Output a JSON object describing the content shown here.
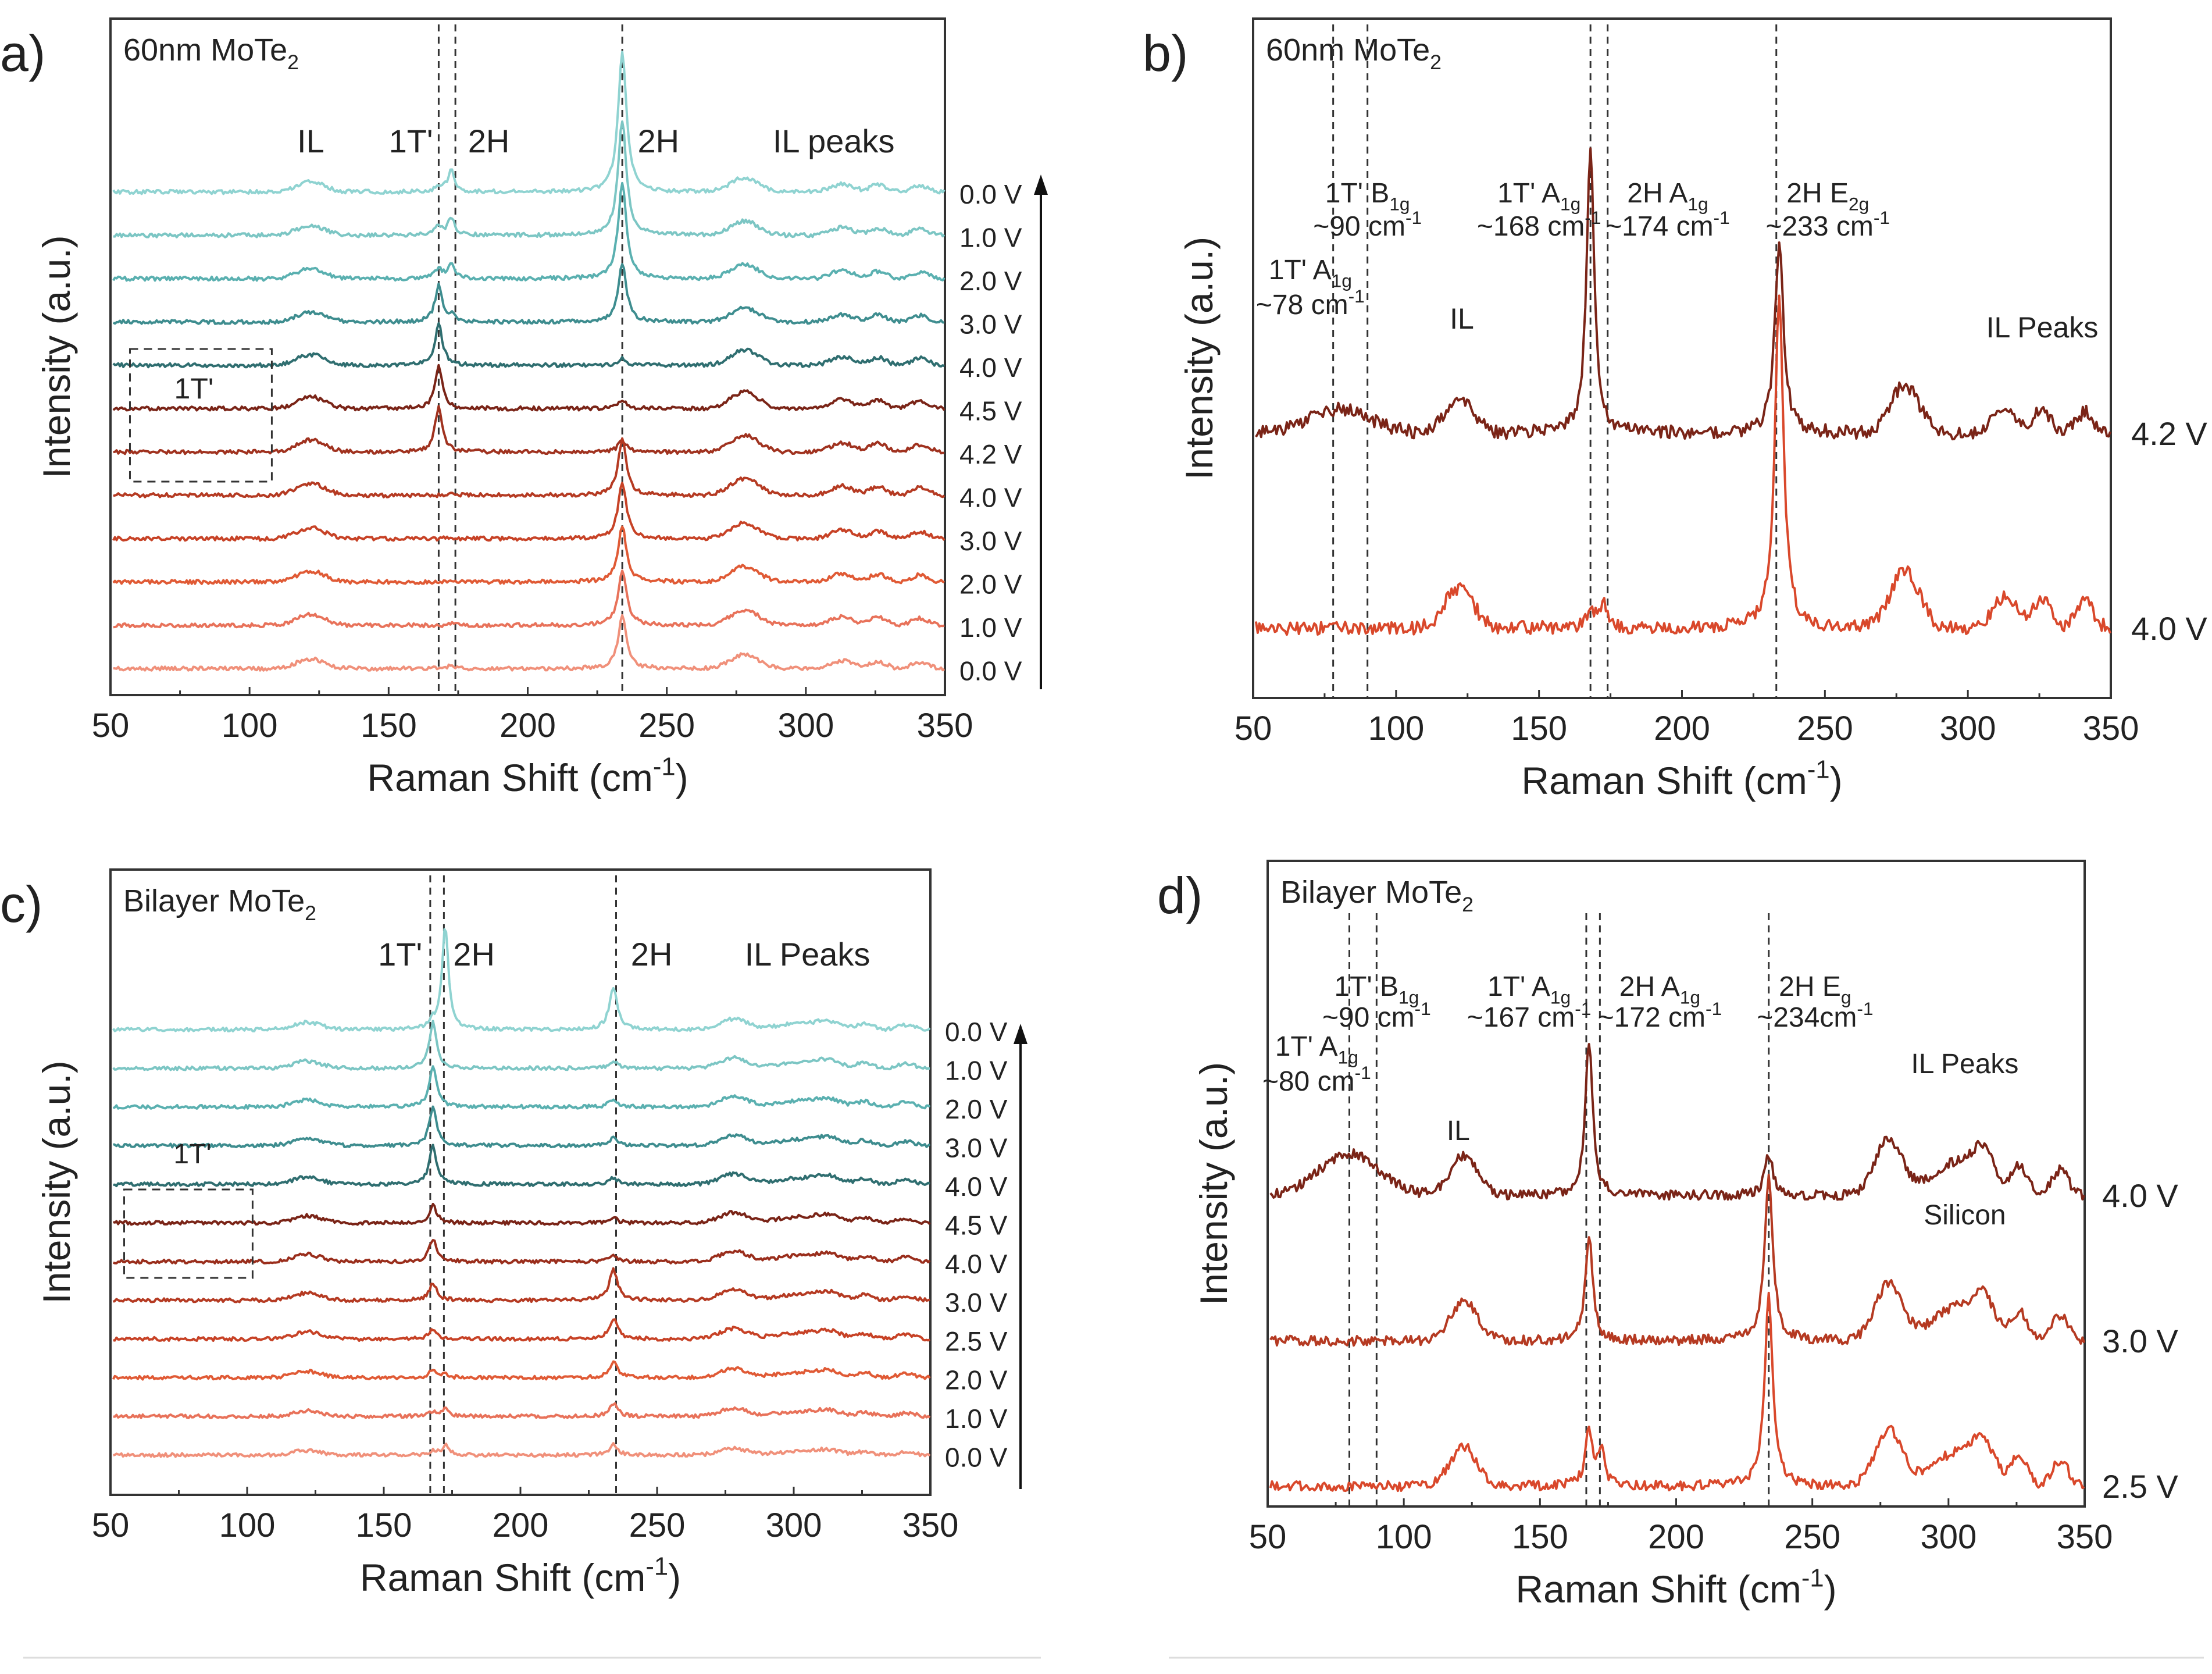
{
  "figure": {
    "colors": {
      "axis": "#333333",
      "dash": "#333333",
      "teal_light": "#8fd3d1",
      "teal_dark": "#2f6e70",
      "maroon": "#7a2417",
      "red": "#d9482b",
      "salmon": "#f0907a"
    }
  },
  "chart_data": [
    {
      "id": "a",
      "type": "line",
      "panel_label": "a)",
      "sample_label": "60nm MoTe",
      "sample_sub": "2",
      "xlabel": "Raman Shift (cm",
      "xlabel_sup": "-1",
      "xlabel_tail": ")",
      "ylabel": "Intensity (a.u.)",
      "xlim": [
        50,
        350
      ],
      "xticks": [
        50,
        100,
        150,
        200,
        250,
        300,
        350
      ],
      "dashed_lines": [
        168,
        174,
        234
      ],
      "peak_labels": [
        {
          "text": "IL",
          "x": 122
        },
        {
          "text": "1T'",
          "x": 158
        },
        {
          "text": "2H",
          "x": 186
        },
        {
          "text": "2H",
          "x": 247
        },
        {
          "text": "IL peaks",
          "x": 310
        }
      ],
      "box_label": "1T'",
      "arrow": true,
      "series": [
        {
          "name": "0.0 V",
          "color": "#8fd3d1",
          "p168": 0.4,
          "p174": 1.6,
          "p234": 10.0,
          "il": 1.0,
          "silicon": 0.0
        },
        {
          "name": "1.0 V",
          "color": "#7cc6c4",
          "p168": 0.6,
          "p174": 1.3,
          "p234": 8.2,
          "il": 1.0,
          "silicon": 0.0
        },
        {
          "name": "2.0 V",
          "color": "#5ab0b0",
          "p168": 0.7,
          "p174": 1.0,
          "p234": 6.8,
          "il": 1.0,
          "silicon": 0.0
        },
        {
          "name": "3.0 V",
          "color": "#3e8d8f",
          "p168": 2.6,
          "p174": 0.4,
          "p234": 4.2,
          "il": 1.0,
          "silicon": 0.0
        },
        {
          "name": "4.0 V",
          "color": "#2f6e70",
          "p168": 3.0,
          "p174": 0.0,
          "p234": 0.5,
          "il": 1.1,
          "silicon": 0.0
        },
        {
          "name": "4.5 V",
          "color": "#7a2417",
          "p168": 3.0,
          "p174": 0.0,
          "p234": 0.6,
          "il": 1.2,
          "silicon": 0.0
        },
        {
          "name": "4.2 V",
          "color": "#a0321f",
          "p168": 3.2,
          "p174": 0.0,
          "p234": 0.8,
          "il": 1.2,
          "silicon": 0.0
        },
        {
          "name": "4.0 V",
          "color": "#b53a22",
          "p168": 0.0,
          "p174": 0.2,
          "p234": 4.0,
          "il": 1.2,
          "silicon": 0.0
        },
        {
          "name": "3.0 V",
          "color": "#c74226",
          "p168": 0.0,
          "p174": 0.1,
          "p234": 4.0,
          "il": 1.1,
          "silicon": 0.0
        },
        {
          "name": "2.0 V",
          "color": "#e05a35",
          "p168": 0.0,
          "p174": 0.1,
          "p234": 4.0,
          "il": 1.1,
          "silicon": 0.0
        },
        {
          "name": "1.0 V",
          "color": "#e8725a",
          "p168": 0.0,
          "p174": 0.1,
          "p234": 4.0,
          "il": 1.1,
          "silicon": 0.0
        },
        {
          "name": "0.0 V",
          "color": "#f0907a",
          "p168": 0.0,
          "p174": 0.2,
          "p234": 3.8,
          "il": 1.0,
          "silicon": 0.0
        }
      ]
    },
    {
      "id": "b",
      "type": "line",
      "panel_label": "b)",
      "sample_label": "60nm MoTe",
      "sample_sub": "2",
      "xlabel": "Raman Shift (cm",
      "xlabel_sup": "-1",
      "xlabel_tail": ")",
      "ylabel": "Intensity (a.u.)",
      "xlim": [
        50,
        350
      ],
      "xticks": [
        50,
        100,
        150,
        200,
        250,
        300,
        350
      ],
      "dashed_lines": [
        78,
        90,
        168,
        174,
        233
      ],
      "peak_annotations": [
        {
          "l1": "1T' B",
          "sub": "1g",
          "l2": "~90 cm",
          "x": 90
        },
        {
          "l1": "1T' A",
          "sub": "1g",
          "l2": "~168 cm",
          "x": 150
        },
        {
          "l1": "2H A",
          "sub": "1g",
          "l2": "~174 cm",
          "x": 195
        },
        {
          "l1": "2H E",
          "sub": "2g",
          "l2": "~233 cm",
          "x": 251
        },
        {
          "l1": "1T' A",
          "sub": "1g",
          "l2": "~78 cm",
          "x": 70
        }
      ],
      "text_labels": [
        {
          "text": "IL",
          "x": 123
        },
        {
          "text": "IL Peaks",
          "x": 326
        }
      ],
      "series": [
        {
          "name": "4.2 V",
          "color": "#7a2417",
          "p168": 6.0,
          "p174": 0.0,
          "p234": 4.0,
          "p78": 0.5,
          "il": 1.0
        },
        {
          "name": "4.0 V",
          "color": "#d9482b",
          "p168": 0.4,
          "p174": 0.6,
          "p234": 7.0,
          "p78": 0.0,
          "il": 1.2
        }
      ]
    },
    {
      "id": "c",
      "type": "line",
      "panel_label": "c)",
      "sample_label": "Bilayer MoTe",
      "sample_sub": "2",
      "xlabel": "Raman Shift (cm",
      "xlabel_sup": "-1",
      "xlabel_tail": ")",
      "ylabel": "Intensity (a.u.)",
      "xlim": [
        50,
        350
      ],
      "xticks": [
        50,
        100,
        150,
        200,
        250,
        300,
        350
      ],
      "dashed_lines": [
        167,
        172,
        235
      ],
      "peak_labels": [
        {
          "text": "1T'",
          "x": 156
        },
        {
          "text": "2H",
          "x": 183
        },
        {
          "text": "2H",
          "x": 248
        },
        {
          "text": "IL Peaks",
          "x": 305
        }
      ],
      "box_label": "1T'",
      "arrow": true,
      "series": [
        {
          "name": "0.0 V",
          "color": "#8fd3d1",
          "p168": 0.5,
          "p174": 8.0,
          "p234": 3.2,
          "il": 0.8,
          "silicon": 0.0
        },
        {
          "name": "1.0 V",
          "color": "#7cc6c4",
          "p168": 3.6,
          "p174": 0.0,
          "p234": 0.6,
          "il": 0.8,
          "silicon": 0.0
        },
        {
          "name": "2.0 V",
          "color": "#5ab0b0",
          "p168": 3.2,
          "p174": 0.0,
          "p234": 0.6,
          "il": 0.8,
          "silicon": 0.0
        },
        {
          "name": "3.0 V",
          "color": "#3e8d8f",
          "p168": 3.0,
          "p174": 0.0,
          "p234": 0.6,
          "il": 0.8,
          "silicon": 0.0
        },
        {
          "name": "4.0 V",
          "color": "#2f6e70",
          "p168": 3.0,
          "p174": 0.0,
          "p234": 0.5,
          "il": 0.8,
          "silicon": 0.0
        },
        {
          "name": "4.5 V",
          "color": "#7a2417",
          "p168": 1.4,
          "p174": 0.0,
          "p234": 0.4,
          "il": 0.8,
          "silicon": 0.0
        },
        {
          "name": "4.0 V",
          "color": "#9a2e1c",
          "p168": 1.8,
          "p174": 0.0,
          "p234": 0.4,
          "il": 0.8,
          "silicon": 0.0
        },
        {
          "name": "3.0 V",
          "color": "#b53a22",
          "p168": 1.4,
          "p174": 0.0,
          "p234": 2.4,
          "il": 0.8,
          "silicon": 0.0
        },
        {
          "name": "2.5 V",
          "color": "#c74226",
          "p168": 0.8,
          "p174": 0.0,
          "p234": 1.6,
          "il": 0.8,
          "silicon": 0.0
        },
        {
          "name": "2.0 V",
          "color": "#e05a35",
          "p168": 0.6,
          "p174": 0.3,
          "p234": 1.2,
          "il": 0.7,
          "silicon": 0.0
        },
        {
          "name": "1.0 V",
          "color": "#e8725a",
          "p168": 0.4,
          "p174": 0.6,
          "p234": 1.0,
          "il": 0.6,
          "silicon": 0.0
        },
        {
          "name": "0.0 V",
          "color": "#f0907a",
          "p168": 0.3,
          "p174": 0.8,
          "p234": 0.8,
          "il": 0.5,
          "silicon": 0.0
        }
      ]
    },
    {
      "id": "d",
      "type": "line",
      "panel_label": "d)",
      "sample_label": "Bilayer MoTe",
      "sample_sub": "2",
      "xlabel": "Raman Shift (cm",
      "xlabel_sup": "-1",
      "xlabel_tail": ")",
      "ylabel": "Intensity (a.u.)",
      "xlim": [
        50,
        350
      ],
      "xticks": [
        50,
        100,
        150,
        200,
        250,
        300,
        350
      ],
      "dashed_lines": [
        80,
        90,
        167,
        172,
        234
      ],
      "peak_annotations": [
        {
          "l1": "1T' B",
          "sub": "1g",
          "l2": "~90 cm",
          "x": 90
        },
        {
          "l1": "1T' A",
          "sub": "1g",
          "l2": "~167 cm",
          "x": 146
        },
        {
          "l1": "2H A",
          "sub": "1g",
          "l2": "~172 cm",
          "x": 194
        },
        {
          "l1": "2H E",
          "sub": "g",
          "l2": "~234cm",
          "x": 251
        },
        {
          "l1": "1T' A",
          "sub": "1g",
          "l2": "~80 cm",
          "x": 68
        }
      ],
      "text_labels": [
        {
          "text": "IL",
          "x": 120
        },
        {
          "text": "IL Peaks",
          "x": 306
        },
        {
          "text": "Silicon",
          "x": 306
        }
      ],
      "series": [
        {
          "name": "4.0 V",
          "color": "#7a2417",
          "p168": 4.4,
          "p174": 0.0,
          "p234": 1.2,
          "p78": 1.2,
          "il": 1.6
        },
        {
          "name": "3.0 V",
          "color": "#b53a22",
          "p168": 3.0,
          "p174": 0.0,
          "p234": 4.8,
          "p78": 0.0,
          "il": 1.6
        },
        {
          "name": "2.5 V",
          "color": "#d9482b",
          "p168": 1.6,
          "p174": 1.0,
          "p234": 5.4,
          "p78": 0.0,
          "il": 1.6
        }
      ]
    }
  ]
}
